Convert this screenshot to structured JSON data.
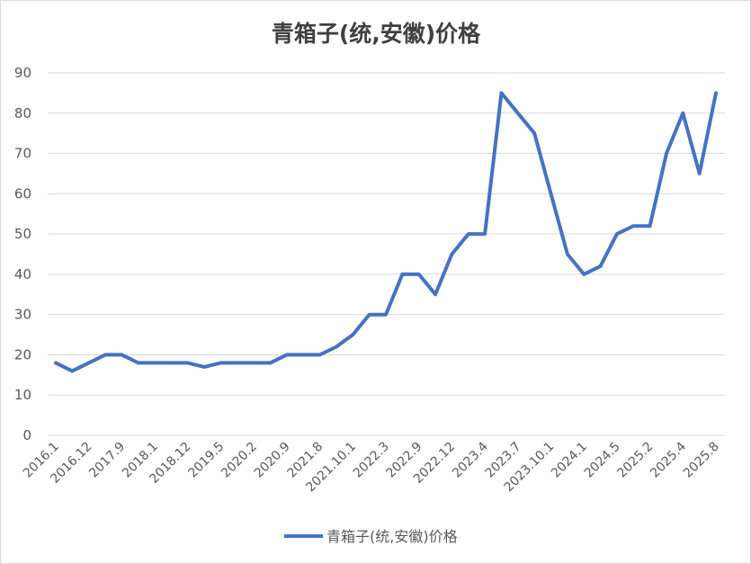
{
  "chart_data": {
    "type": "line",
    "title": "青箱子(统,安徽)价格",
    "xlabel": "",
    "ylabel": "",
    "ylim": [
      0,
      90
    ],
    "yticks": [
      0,
      10,
      20,
      30,
      40,
      50,
      60,
      70,
      80,
      90
    ],
    "grid": true,
    "legend_position": "bottom",
    "x_tick_labels": [
      "2016.1",
      "2016.12",
      "2017.9",
      "2018.1",
      "2018.12",
      "2019.5",
      "2020.2",
      "2020.9",
      "2021.8",
      "2021.10.1",
      "2022.3",
      "2022.9",
      "2022.12",
      "2023.4",
      "2023.7",
      "2023.10.1",
      "2024.1",
      "2024.5",
      "2025.2",
      "2025.4",
      "2025.8"
    ],
    "series": [
      {
        "name": "青箱子(统,安徽)价格",
        "color": "#4472c4",
        "values": [
          18,
          16,
          18,
          20,
          20,
          18,
          18,
          18,
          18,
          17,
          18,
          18,
          18,
          18,
          20,
          20,
          20,
          22,
          25,
          30,
          30,
          40,
          40,
          35,
          45,
          50,
          50,
          85,
          80,
          75,
          60,
          45,
          40,
          42,
          50,
          52,
          52,
          70,
          80,
          65,
          85
        ]
      }
    ]
  }
}
